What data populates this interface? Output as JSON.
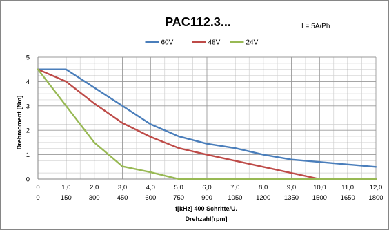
{
  "chart_data": {
    "type": "line",
    "title": "PAC112.3...",
    "annotation": "I = 5A/Ph",
    "xlabel": [
      "f[kHz] 400 Schritte/U.",
      "Drehzahl[rpm]"
    ],
    "ylabel": "Drehmoment [Nm]",
    "x": [
      0,
      1,
      2,
      3,
      4,
      5,
      6,
      7,
      8,
      9,
      10,
      11,
      12
    ],
    "x_tick_labels": [
      "0",
      "1,0",
      "2,0",
      "3,0",
      "4,0",
      "5,0",
      "6,0",
      "7,0",
      "8,0",
      "9,0",
      "10,0",
      "11,0",
      "12,0"
    ],
    "x2_tick_labels": [
      "0",
      "150",
      "300",
      "450",
      "600",
      "750",
      "900",
      "1050",
      "1200",
      "1350",
      "1500",
      "1650",
      "1800"
    ],
    "xlim": [
      0,
      12
    ],
    "ylim": [
      0,
      5
    ],
    "y_ticks": [
      0,
      1,
      2,
      3,
      4,
      5
    ],
    "grid": true,
    "legend_position": "top-center",
    "series": [
      {
        "name": "60V",
        "color": "#4a7ebb",
        "values": [
          4.5,
          4.5,
          3.75,
          3.0,
          2.25,
          1.75,
          1.45,
          1.27,
          1.0,
          0.8,
          0.7,
          0.6,
          0.5
        ]
      },
      {
        "name": "48V",
        "color": "#be4b48",
        "values": [
          4.5,
          4.0,
          3.1,
          2.3,
          1.73,
          1.27,
          1.0,
          0.75,
          0.5,
          0.25,
          0.0,
          0.0,
          0.0
        ]
      },
      {
        "name": "24V",
        "color": "#98b954",
        "values": [
          4.5,
          3.0,
          1.5,
          0.52,
          0.28,
          0.0,
          0.0,
          0.0,
          0.0,
          0.0,
          0.0,
          0.0,
          0.0
        ]
      }
    ]
  }
}
